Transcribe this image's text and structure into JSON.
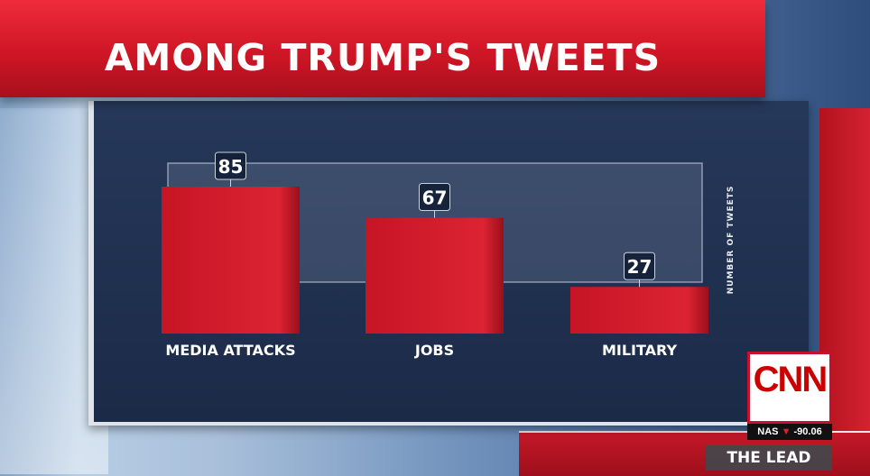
{
  "banner": {
    "title": "AMONG TRUMP'S TWEETS"
  },
  "chart_data": {
    "type": "bar",
    "categories": [
      "MEDIA ATTACKS",
      "JOBS",
      "MILITARY"
    ],
    "values": [
      85,
      67,
      27
    ],
    "ylabel": "NUMBER OF TWEETS",
    "ylim": [
      0,
      85
    ],
    "grid": false,
    "bar_color": "#d01c2c"
  },
  "network": {
    "logo": "CNN",
    "ticker_symbol": "NAS",
    "ticker_arrow": "▼",
    "ticker_value": "-90.06",
    "show": "THE LEAD"
  }
}
